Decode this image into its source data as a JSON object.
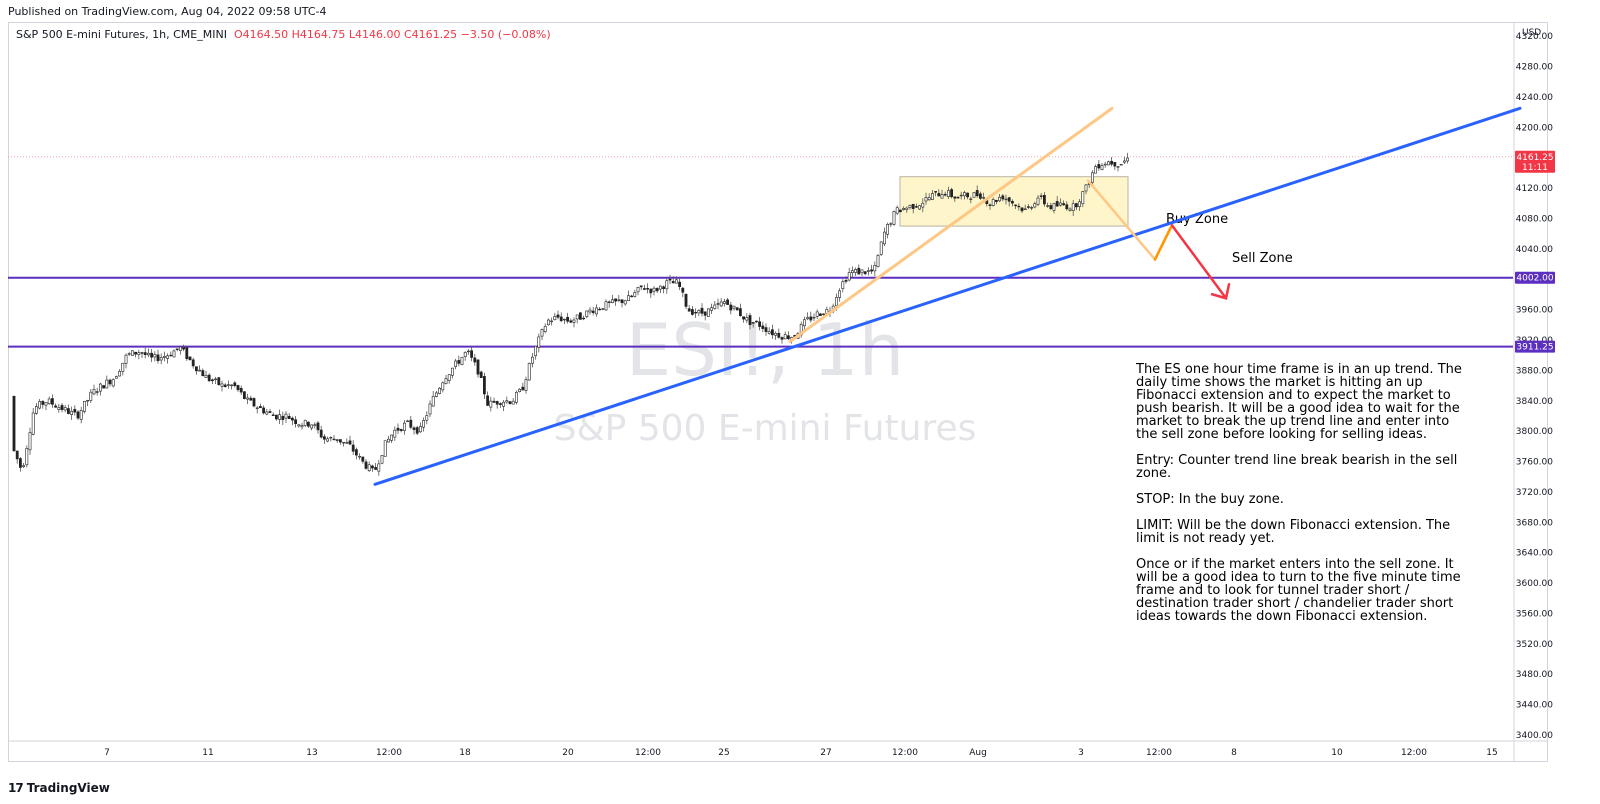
{
  "header": {
    "published": "Published on TradingView.com, Aug 04, 2022 09:58 UTC-4"
  },
  "legend": {
    "symbol": "S&P 500 E-mini Futures, 1h, CME_MINI",
    "open": "O4164.50",
    "high": "H4164.75",
    "low": "L4146.00",
    "close": "C4161.25",
    "change": "−3.50 (−0.08%)"
  },
  "watermark": {
    "ticker": "ESI!, 1h",
    "name": "S&P 500 E-mini Futures"
  },
  "footer": {
    "brand": "TradingView",
    "logo_icon": "tradingview-logo-icon"
  },
  "annotations": {
    "buy_zone": "Buy Zone",
    "sell_zone": "Sell Zone",
    "notes": [
      "The ES one hour time frame is in an up trend. The daily time shows the market is hitting an up Fibonacci extension and to expect the market to push bearish. It will be a good idea to wait for the market to break the up trend line and enter into the sell zone before looking for selling ideas.",
      "Entry: Counter trend line break bearish in the sell zone.",
      "STOP: In the buy zone.",
      "LIMIT: Will be the down Fibonacci extension. The limit is not ready yet.",
      "Once or if the market enters into the sell zone. It will be a good idea to turn to the five minute time frame and to look for tunnel trader short / destination trader short / chandelier trader short ideas towards the down Fibonacci extension."
    ]
  },
  "chart_data": {
    "type": "candlestick",
    "title": "S&P 500 E-mini Futures, 1h, CME_MINI",
    "currency": "USD",
    "ylim": [
      3400,
      4340
    ],
    "y_ticks": [
      3400,
      3440,
      3480,
      3520,
      3560,
      3600,
      3640,
      3680,
      3720,
      3760,
      3800,
      3840,
      3880,
      3920,
      3960,
      4000,
      4040,
      4080,
      4120,
      4160,
      4200,
      4240,
      4280,
      4320
    ],
    "x_ticks": [
      "7",
      "11",
      "13",
      "12:00",
      "18",
      "20",
      "12:00",
      "25",
      "27",
      "12:00",
      "Aug",
      "3",
      "12:00",
      "8",
      "10",
      "12:00",
      "15"
    ],
    "price_labels": [
      {
        "value": 4161.25,
        "label": "4161.25",
        "sub": "11:11",
        "color": "#f23645"
      },
      {
        "value": 4002.0,
        "label": "4002.00",
        "color": "#5b2fc0"
      },
      {
        "value": 3911.25,
        "label": "3911.25",
        "color": "#5b2fc0"
      }
    ],
    "horizontal_levels": [
      4002.0,
      3911.25
    ],
    "path_points": [
      [
        0,
        3846
      ],
      [
        10,
        3780
      ],
      [
        20,
        3748
      ],
      [
        32,
        3830
      ],
      [
        45,
        3840
      ],
      [
        60,
        3830
      ],
      [
        75,
        3820
      ],
      [
        90,
        3850
      ],
      [
        100,
        3860
      ],
      [
        112,
        3870
      ],
      [
        125,
        3900
      ],
      [
        138,
        3905
      ],
      [
        150,
        3895
      ],
      [
        165,
        3900
      ],
      [
        178,
        3910
      ],
      [
        190,
        3890
      ],
      [
        205,
        3870
      ],
      [
        220,
        3860
      ],
      [
        232,
        3860
      ],
      [
        245,
        3840
      ],
      [
        258,
        3830
      ],
      [
        272,
        3820
      ],
      [
        285,
        3820
      ],
      [
        298,
        3810
      ],
      [
        310,
        3810
      ],
      [
        322,
        3790
      ],
      [
        335,
        3790
      ],
      [
        348,
        3780
      ],
      [
        360,
        3760
      ],
      [
        372,
        3745
      ],
      [
        382,
        3780
      ],
      [
        392,
        3800
      ],
      [
        405,
        3810
      ],
      [
        418,
        3800
      ],
      [
        430,
        3840
      ],
      [
        442,
        3870
      ],
      [
        455,
        3890
      ],
      [
        465,
        3905
      ],
      [
        476,
        3880
      ],
      [
        486,
        3835
      ],
      [
        498,
        3840
      ],
      [
        510,
        3840
      ],
      [
        520,
        3855
      ],
      [
        532,
        3905
      ],
      [
        545,
        3945
      ],
      [
        556,
        3950
      ],
      [
        567,
        3945
      ],
      [
        578,
        3950
      ],
      [
        590,
        3960
      ],
      [
        602,
        3965
      ],
      [
        615,
        3970
      ],
      [
        628,
        3975
      ],
      [
        640,
        3990
      ],
      [
        652,
        3985
      ],
      [
        665,
        3995
      ],
      [
        676,
        3995
      ],
      [
        686,
        3960
      ],
      [
        698,
        3955
      ],
      [
        710,
        3960
      ],
      [
        722,
        3970
      ],
      [
        734,
        3960
      ],
      [
        746,
        3945
      ],
      [
        758,
        3940
      ],
      [
        770,
        3930
      ],
      [
        782,
        3925
      ],
      [
        792,
        3925
      ],
      [
        804,
        3945
      ],
      [
        816,
        3955
      ],
      [
        828,
        3960
      ],
      [
        838,
        3990
      ],
      [
        848,
        4010
      ],
      [
        860,
        4010
      ],
      [
        872,
        4010
      ],
      [
        882,
        4060
      ],
      [
        894,
        4090
      ],
      [
        906,
        4095
      ],
      [
        918,
        4100
      ],
      [
        930,
        4110
      ],
      [
        942,
        4115
      ],
      [
        954,
        4108
      ],
      [
        966,
        4110
      ],
      [
        978,
        4112
      ],
      [
        988,
        4100
      ],
      [
        1000,
        4110
      ],
      [
        1012,
        4100
      ],
      [
        1024,
        4090
      ],
      [
        1036,
        4108
      ],
      [
        1048,
        4095
      ],
      [
        1060,
        4098
      ],
      [
        1072,
        4095
      ],
      [
        1084,
        4120
      ],
      [
        1094,
        4150
      ],
      [
        1106,
        4155
      ],
      [
        1118,
        4152
      ],
      [
        1128,
        4161
      ]
    ],
    "drawings": {
      "trendline_blue": {
        "from": [
          375,
          3730
        ],
        "to": [
          1520,
          4225
        ],
        "color": "#2962ff"
      },
      "fib_line_orange": {
        "from": [
          790,
          3918
        ],
        "to": [
          1112,
          4225
        ],
        "color": "#ffc785"
      },
      "buy_zone_rect": {
        "x0": 900,
        "x1": 1128,
        "p_top": 4135,
        "p_bottom": 4070,
        "fill": "#fdf3b8",
        "stroke": "#b9b3a0"
      },
      "projection_yellow": {
        "points": [
          [
            1088,
            4130
          ],
          [
            1155,
            4026
          ],
          [
            1170,
            4067
          ]
        ],
        "color": "#ffc785"
      },
      "projection_orange": {
        "points": [
          [
            1155,
            4026
          ],
          [
            1172,
            4071
          ]
        ],
        "color": "#ff9800"
      },
      "projection_red": {
        "points": [
          [
            1172,
            4071
          ],
          [
            1226,
            3975
          ]
        ],
        "color": "#f23645"
      }
    }
  }
}
